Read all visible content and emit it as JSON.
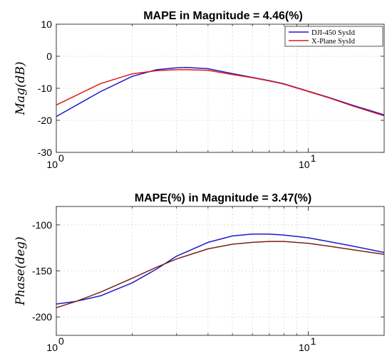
{
  "chart_data": [
    {
      "type": "line",
      "title": "MAPE in Magnitude = 4.46(%)",
      "xlabel": "",
      "ylabel": "Mag(dB)",
      "xscale": "log",
      "xlim": [
        1,
        20
      ],
      "ylim": [
        -30,
        10
      ],
      "xticks": [
        1,
        10
      ],
      "xtick_labels": [
        {
          "base": "10",
          "exp": "0"
        },
        {
          "base": "10",
          "exp": "1"
        }
      ],
      "yticks": [
        10,
        0,
        -10,
        -20,
        -30
      ],
      "ytick_labels": [
        "10",
        "0",
        "-10",
        "-20",
        "-30"
      ],
      "grid": true,
      "legend": "top-right",
      "x": [
        1,
        1.5,
        2,
        2.5,
        3,
        3.3,
        4,
        5,
        6,
        7,
        8,
        10,
        12,
        15,
        20
      ],
      "series": [
        {
          "name": "DJI-450 SysId",
          "color": "#1a1acc",
          "values": [
            -18.8,
            -11,
            -6.3,
            -4.2,
            -3.6,
            -3.5,
            -3.9,
            -5.4,
            -6.6,
            -7.6,
            -8.6,
            -10.9,
            -12.8,
            -15.3,
            -18.3
          ]
        },
        {
          "name": "X-Plane SysId",
          "color": "#e01818",
          "values": [
            -15.2,
            -8.5,
            -5.5,
            -4.5,
            -4.2,
            -4.2,
            -4.4,
            -5.7,
            -6.7,
            -7.7,
            -8.7,
            -11.0,
            -12.9,
            -15.5,
            -18.6
          ]
        }
      ]
    },
    {
      "type": "line",
      "title": "MAPE(%) in Magnitude = 3.47(%)",
      "xlabel": "",
      "ylabel": "Phase(deg)",
      "xscale": "log",
      "xlim": [
        1,
        20
      ],
      "ylim": [
        -220,
        -80
      ],
      "xticks": [
        1,
        10
      ],
      "xtick_labels": [
        {
          "base": "10",
          "exp": "0"
        },
        {
          "base": "10",
          "exp": "1"
        }
      ],
      "yticks": [
        -100,
        -150,
        -200
      ],
      "ytick_labels": [
        "-100",
        "-150",
        "-200"
      ],
      "grid": true,
      "x": [
        1,
        1.2,
        1.5,
        2,
        2.5,
        3,
        4,
        5,
        6,
        7,
        8,
        10,
        12,
        15,
        20
      ],
      "series": [
        {
          "name": "DJI-450 SysId",
          "color": "#1a1acc",
          "values": [
            -186,
            -183,
            -177,
            -163,
            -148,
            -134,
            -119,
            -112,
            -110,
            -110,
            -111,
            -114,
            -118,
            -123,
            -130
          ]
        },
        {
          "name": "",
          "color": "#7a2218",
          "values": [
            -190,
            -183,
            -173,
            -158,
            -146,
            -137,
            -126,
            -121,
            -119,
            -118,
            -118,
            -120,
            -123,
            -127,
            -132
          ]
        }
      ]
    }
  ]
}
